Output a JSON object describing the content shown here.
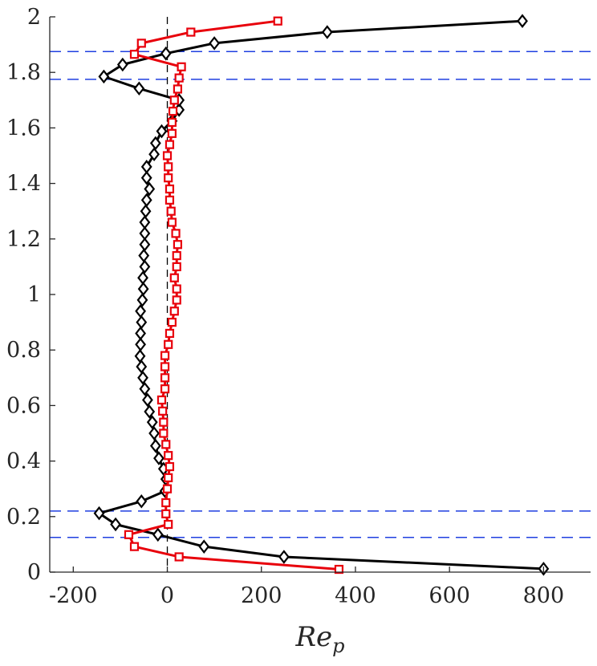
{
  "chart_data": {
    "type": "line",
    "xlabel": "Re",
    "xlabel_subscript": "p",
    "xlim": [
      -250,
      900
    ],
    "ylim": [
      0,
      2
    ],
    "xticks": [
      -200,
      0,
      200,
      400,
      600,
      800
    ],
    "xtick_labels": [
      "-200",
      "0",
      "200",
      "400",
      "600",
      "800"
    ],
    "yticks": [
      0,
      0.2,
      0.4,
      0.6,
      0.8,
      1,
      1.2,
      1.4,
      1.6,
      1.8,
      2
    ],
    "ytick_labels": [
      "0",
      "0.2",
      "0.4",
      "0.6",
      "0.8",
      "1",
      "1.2",
      "1.4",
      "1.6",
      "1.8",
      "2"
    ],
    "grid": false,
    "reference_lines": {
      "vertical_x": 0,
      "vertical_color": "#000000",
      "horizontal_y": [
        0.125,
        0.22,
        1.775,
        1.875
      ],
      "horizontal_color": "#1f3fe0"
    },
    "series": [
      {
        "marker": "diamond",
        "color": "#000000",
        "points": [
          [
            800,
            0.012
          ],
          [
            248,
            0.055
          ],
          [
            78,
            0.092
          ],
          [
            -20,
            0.135
          ],
          [
            -110,
            0.172
          ],
          [
            -145,
            0.212
          ],
          [
            -55,
            0.255
          ],
          [
            -5,
            0.292
          ],
          [
            -3,
            0.335
          ],
          [
            -8,
            0.372
          ],
          [
            -18,
            0.41
          ],
          [
            -25,
            0.455
          ],
          [
            -28,
            0.5
          ],
          [
            -32,
            0.54
          ],
          [
            -38,
            0.578
          ],
          [
            -42,
            0.62
          ],
          [
            -48,
            0.66
          ],
          [
            -52,
            0.7
          ],
          [
            -55,
            0.74
          ],
          [
            -58,
            0.778
          ],
          [
            -57,
            0.82
          ],
          [
            -57,
            0.86
          ],
          [
            -55,
            0.9
          ],
          [
            -57,
            0.94
          ],
          [
            -53,
            0.98
          ],
          [
            -51,
            1.02
          ],
          [
            -52,
            1.06
          ],
          [
            -48,
            1.1
          ],
          [
            -50,
            1.14
          ],
          [
            -48,
            1.18
          ],
          [
            -48,
            1.22
          ],
          [
            -48,
            1.26
          ],
          [
            -46,
            1.3
          ],
          [
            -44,
            1.34
          ],
          [
            -38,
            1.38
          ],
          [
            -44,
            1.42
          ],
          [
            -44,
            1.46
          ],
          [
            -28,
            1.505
          ],
          [
            -25,
            1.545
          ],
          [
            -12,
            1.588
          ],
          [
            10,
            1.625
          ],
          [
            25,
            1.665
          ],
          [
            25,
            1.7
          ],
          [
            -60,
            1.742
          ],
          [
            -135,
            1.785
          ],
          [
            -95,
            1.828
          ],
          [
            -3,
            1.868
          ],
          [
            100,
            1.905
          ],
          [
            340,
            1.945
          ],
          [
            755,
            1.985
          ]
        ]
      },
      {
        "marker": "square",
        "color": "#e8000b",
        "points": [
          [
            365,
            0.01
          ],
          [
            25,
            0.055
          ],
          [
            -70,
            0.092
          ],
          [
            -82,
            0.135
          ],
          [
            2,
            0.172
          ],
          [
            -3,
            0.21
          ],
          [
            -3,
            0.25
          ],
          [
            0,
            0.3
          ],
          [
            2,
            0.34
          ],
          [
            5,
            0.38
          ],
          [
            2,
            0.42
          ],
          [
            -3,
            0.46
          ],
          [
            -8,
            0.5
          ],
          [
            -8,
            0.54
          ],
          [
            -10,
            0.58
          ],
          [
            -12,
            0.62
          ],
          [
            -5,
            0.66
          ],
          [
            -5,
            0.7
          ],
          [
            -5,
            0.74
          ],
          [
            -5,
            0.78
          ],
          [
            2,
            0.82
          ],
          [
            5,
            0.86
          ],
          [
            10,
            0.9
          ],
          [
            15,
            0.94
          ],
          [
            20,
            0.98
          ],
          [
            20,
            1.02
          ],
          [
            15,
            1.06
          ],
          [
            20,
            1.1
          ],
          [
            20,
            1.14
          ],
          [
            22,
            1.18
          ],
          [
            18,
            1.22
          ],
          [
            10,
            1.26
          ],
          [
            8,
            1.3
          ],
          [
            5,
            1.34
          ],
          [
            5,
            1.38
          ],
          [
            2,
            1.42
          ],
          [
            2,
            1.46
          ],
          [
            0,
            1.5
          ],
          [
            5,
            1.54
          ],
          [
            10,
            1.58
          ],
          [
            10,
            1.62
          ],
          [
            12,
            1.66
          ],
          [
            15,
            1.7
          ],
          [
            22,
            1.74
          ],
          [
            25,
            1.78
          ],
          [
            30,
            1.82
          ],
          [
            -70,
            1.865
          ],
          [
            -55,
            1.905
          ],
          [
            50,
            1.945
          ],
          [
            235,
            1.985
          ]
        ]
      }
    ]
  }
}
